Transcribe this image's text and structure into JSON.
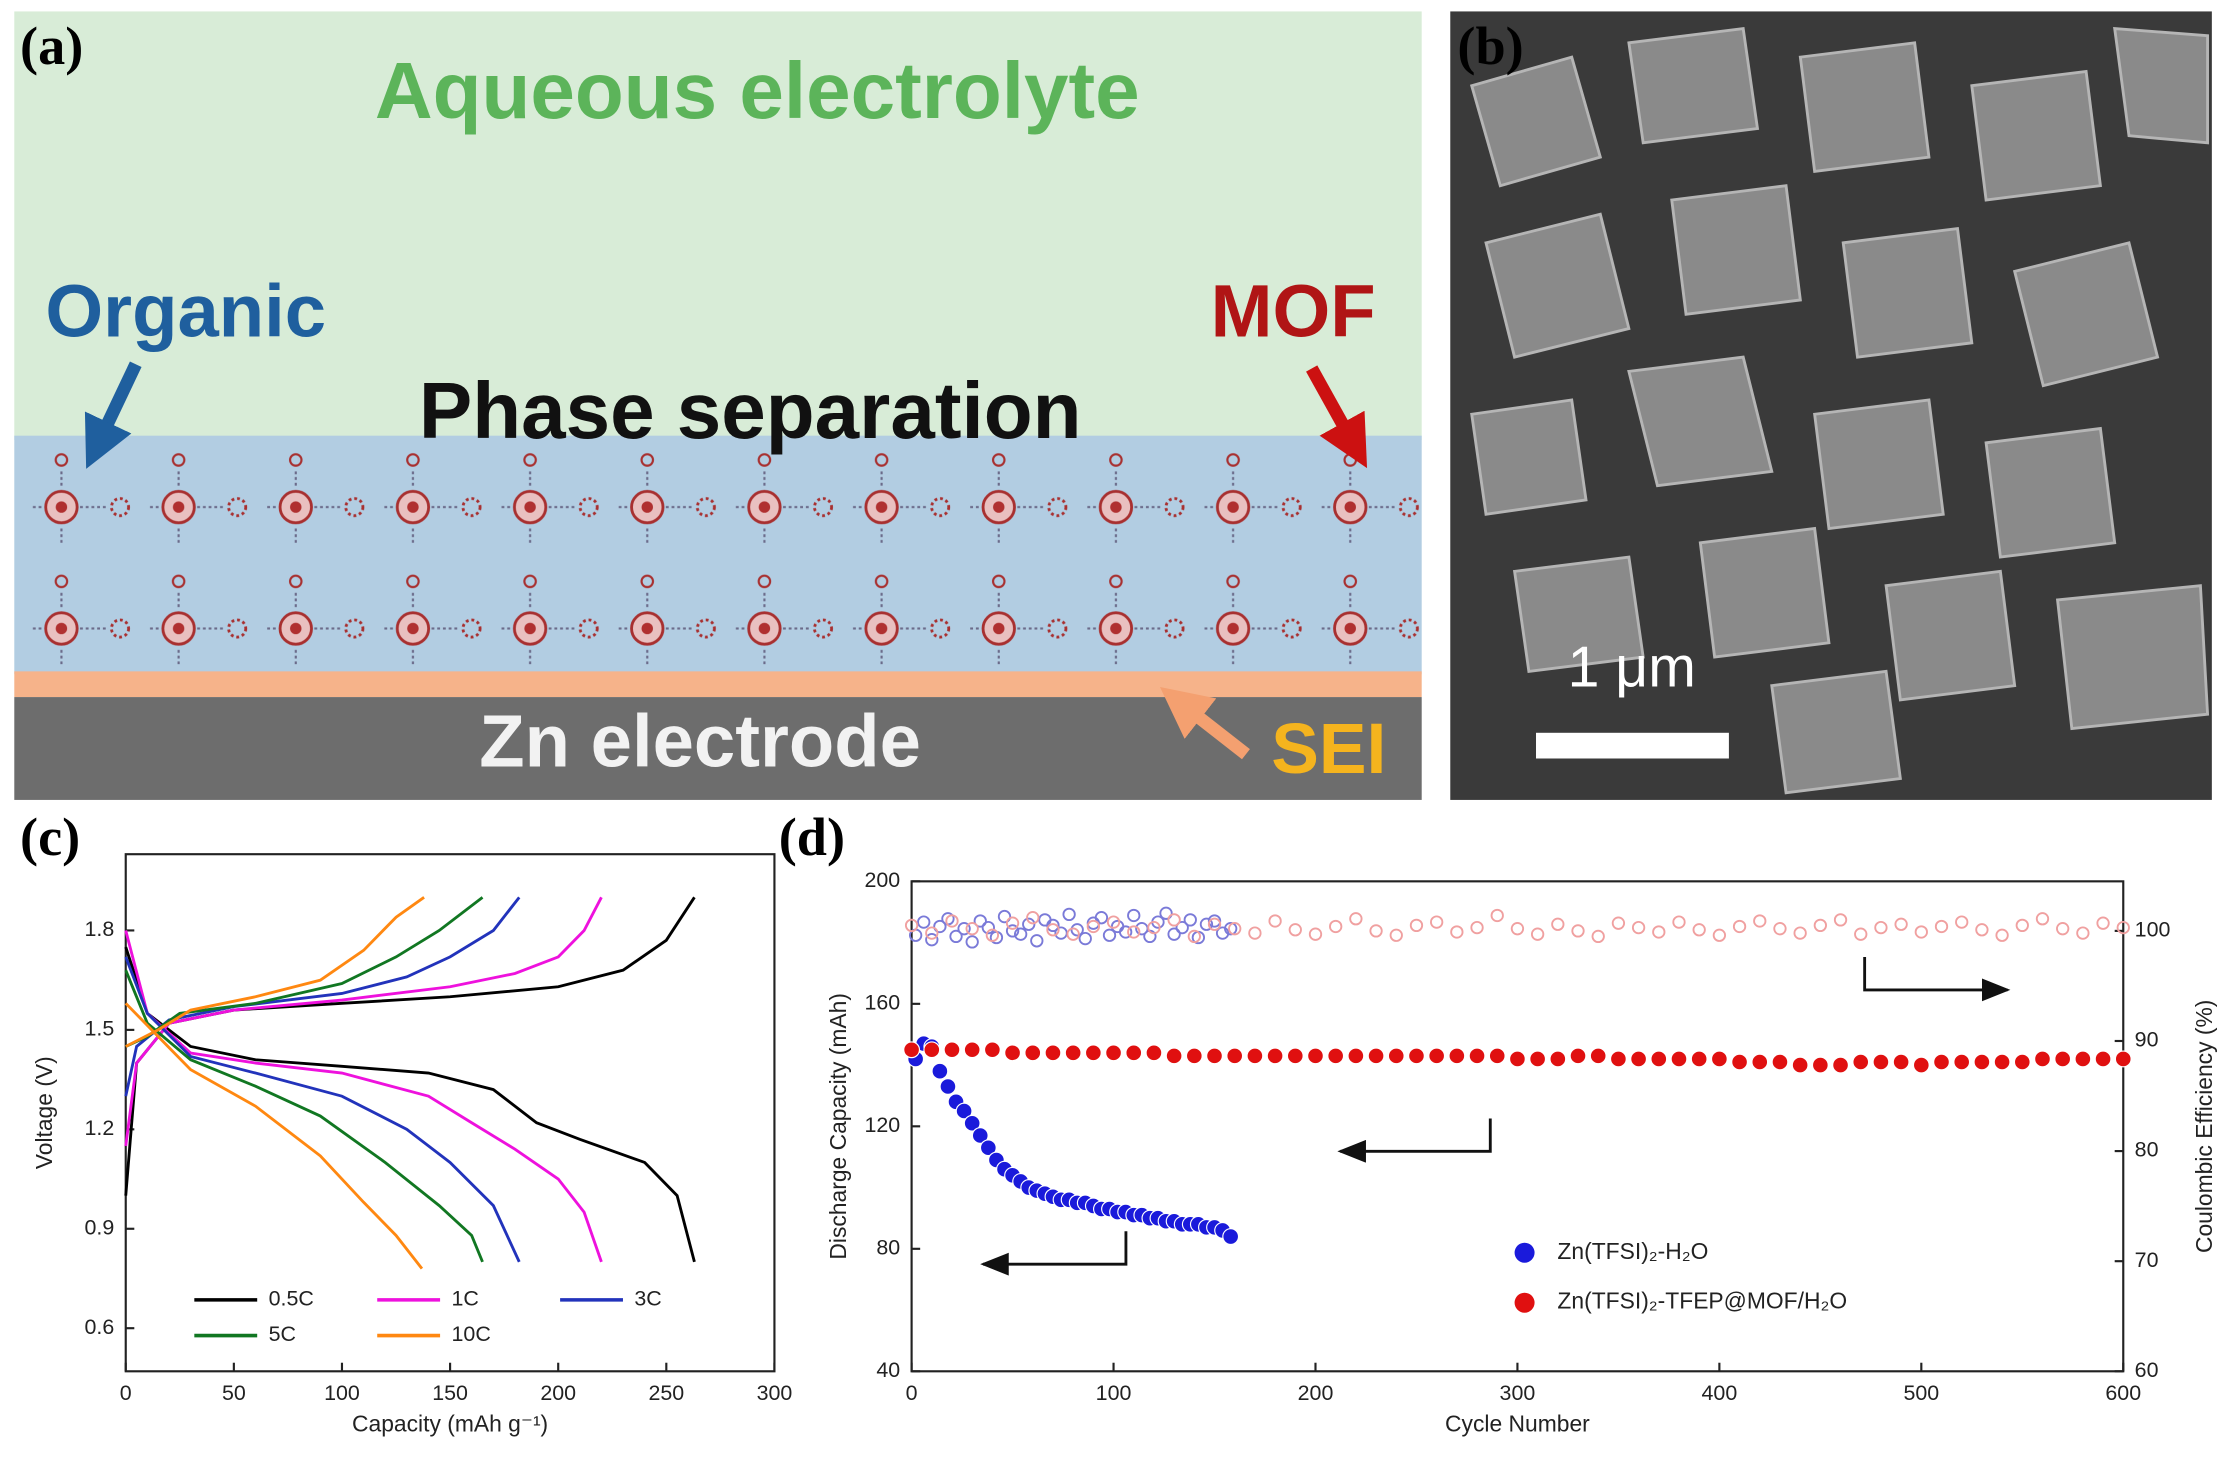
{
  "panel_labels": [
    "(a)",
    "(b)",
    "(c)",
    "(d)"
  ],
  "diagram": {
    "electrolyte": "Aqueous electrolyte",
    "organic": "Organic",
    "mof": "MOF",
    "phase": "Phase separation",
    "electrode": "Zn electrode",
    "sei": "SEI"
  },
  "micrograph": {
    "scale_bar": "1 μm"
  },
  "chart_data": [
    {
      "type": "line",
      "xlabel": "Capacity (mAh g⁻¹)",
      "ylabel": "Voltage (V)",
      "xlim": [
        0,
        300
      ],
      "ylim": [
        0.47,
        2.03
      ],
      "xticks": [
        0,
        50,
        100,
        150,
        200,
        250,
        300
      ],
      "yticks": [
        0.6,
        0.9,
        1.2,
        1.5,
        1.8
      ],
      "series": [
        {
          "name": "0.5C",
          "color": "#000000",
          "discharge": {
            "x": [
              0,
              10,
              30,
              60,
              100,
              140,
              170,
              190,
              210,
              240,
              255,
              263
            ],
            "values": [
              1.75,
              1.55,
              1.45,
              1.41,
              1.39,
              1.37,
              1.32,
              1.22,
              1.17,
              1.1,
              1.0,
              0.8
            ]
          },
          "charge": {
            "x": [
              0,
              5,
              20,
              50,
              100,
              150,
              200,
              230,
              250,
              263
            ],
            "values": [
              1.0,
              1.4,
              1.52,
              1.56,
              1.58,
              1.6,
              1.63,
              1.68,
              1.77,
              1.9
            ]
          }
        },
        {
          "name": "1C",
          "color": "#ee11dd",
          "discharge": {
            "x": [
              0,
              10,
              30,
              60,
              100,
              140,
              160,
              180,
              200,
              212,
              220
            ],
            "values": [
              1.8,
              1.55,
              1.43,
              1.4,
              1.37,
              1.3,
              1.22,
              1.14,
              1.05,
              0.95,
              0.8
            ]
          },
          "charge": {
            "x": [
              0,
              5,
              20,
              50,
              100,
              150,
              180,
              200,
              212,
              220
            ],
            "values": [
              1.15,
              1.4,
              1.52,
              1.56,
              1.59,
              1.63,
              1.67,
              1.72,
              1.8,
              1.9
            ]
          }
        },
        {
          "name": "3C",
          "color": "#2233bb",
          "discharge": {
            "x": [
              0,
              10,
              30,
              60,
              100,
              130,
              150,
              170,
              182
            ],
            "values": [
              1.72,
              1.55,
              1.42,
              1.37,
              1.3,
              1.2,
              1.1,
              0.97,
              0.8
            ]
          },
          "charge": {
            "x": [
              0,
              5,
              20,
              50,
              100,
              130,
              150,
              170,
              182
            ],
            "values": [
              1.3,
              1.45,
              1.53,
              1.57,
              1.61,
              1.66,
              1.72,
              1.8,
              1.9
            ]
          }
        },
        {
          "name": "5C",
          "color": "#117722",
          "discharge": {
            "x": [
              0,
              10,
              30,
              60,
              90,
              120,
              145,
              160,
              165
            ],
            "values": [
              1.68,
              1.52,
              1.41,
              1.33,
              1.24,
              1.1,
              0.97,
              0.88,
              0.8
            ]
          },
          "charge": {
            "x": [
              0,
              10,
              25,
              60,
              100,
              125,
              145,
              165
            ],
            "values": [
              1.45,
              1.48,
              1.55,
              1.58,
              1.64,
              1.72,
              1.8,
              1.9
            ]
          }
        },
        {
          "name": "10C",
          "color": "#ff8811",
          "discharge": {
            "x": [
              0,
              15,
              30,
              60,
              90,
              110,
              125,
              137
            ],
            "values": [
              1.58,
              1.48,
              1.38,
              1.27,
              1.12,
              0.98,
              0.88,
              0.78
            ]
          },
          "charge": {
            "x": [
              0,
              15,
              30,
              60,
              90,
              110,
              125,
              138
            ],
            "values": [
              1.45,
              1.5,
              1.56,
              1.6,
              1.65,
              1.74,
              1.84,
              1.9
            ]
          }
        }
      ]
    },
    {
      "type": "scatter",
      "xlabel": "Cycle Number",
      "ylabel": "Discharge Capacity (mAh)",
      "y2label": "Coulombic Efficiency (%)",
      "xlim": [
        0,
        600
      ],
      "ylim": [
        40,
        200
      ],
      "y2lim": [
        60,
        104.5
      ],
      "xticks": [
        0,
        100,
        200,
        300,
        400,
        500,
        600
      ],
      "yticks": [
        40,
        80,
        120,
        160,
        200
      ],
      "y2ticks": [
        60,
        70,
        80,
        90,
        100
      ],
      "series": [
        {
          "name": "Zn(TFSI)₂-H₂O",
          "color": "#1a1adb",
          "fill": true,
          "x": [
            2,
            6,
            10,
            14,
            18,
            22,
            26,
            30,
            34,
            38,
            42,
            46,
            50,
            54,
            58,
            62,
            66,
            70,
            74,
            78,
            82,
            86,
            90,
            94,
            98,
            102,
            106,
            110,
            114,
            118,
            122,
            126,
            130,
            134,
            138,
            142,
            146,
            150,
            154,
            158
          ],
          "values": [
            142,
            147,
            146,
            138,
            133,
            128,
            125,
            121,
            117,
            113,
            109,
            106,
            104,
            102,
            100,
            99,
            98,
            97,
            96,
            96,
            95,
            95,
            94,
            93,
            93,
            92,
            92,
            91,
            91,
            90,
            90,
            89,
            89,
            88,
            88,
            88,
            87,
            87,
            86,
            84
          ]
        },
        {
          "name": "Zn(TFSI)₂-TFEP@MOF/H₂O",
          "color": "#e01010",
          "fill": true,
          "x": [
            0,
            10,
            20,
            30,
            40,
            50,
            60,
            70,
            80,
            90,
            100,
            110,
            120,
            130,
            140,
            150,
            160,
            170,
            180,
            190,
            200,
            210,
            220,
            230,
            240,
            250,
            260,
            270,
            280,
            290,
            300,
            310,
            320,
            330,
            340,
            350,
            360,
            370,
            380,
            390,
            400,
            410,
            420,
            430,
            440,
            450,
            460,
            470,
            480,
            490,
            500,
            510,
            520,
            530,
            540,
            550,
            560,
            570,
            580,
            590,
            600
          ],
          "values": [
            145,
            145,
            145,
            145,
            145,
            144,
            144,
            144,
            144,
            144,
            144,
            144,
            144,
            143,
            143,
            143,
            143,
            143,
            143,
            143,
            143,
            143,
            143,
            143,
            143,
            143,
            143,
            143,
            143,
            143,
            142,
            142,
            142,
            143,
            143,
            142,
            142,
            142,
            142,
            142,
            142,
            141,
            141,
            141,
            140,
            140,
            140,
            141,
            141,
            141,
            140,
            141,
            141,
            141,
            141,
            141,
            142,
            142,
            142,
            142,
            142
          ]
        },
        {
          "color": "#7a7ad8",
          "fill": false,
          "axis": "y2",
          "x": [
            2,
            6,
            10,
            14,
            18,
            22,
            26,
            30,
            34,
            38,
            42,
            46,
            50,
            54,
            58,
            62,
            66,
            70,
            74,
            78,
            82,
            86,
            90,
            94,
            98,
            102,
            106,
            110,
            114,
            118,
            122,
            126,
            130,
            134,
            138,
            142,
            146,
            150,
            154,
            158
          ],
          "values": [
            99.6,
            100.8,
            99.2,
            100.4,
            101.1,
            99.5,
            100.2,
            99.0,
            100.9,
            100.3,
            99.4,
            101.3,
            100.0,
            99.7,
            100.6,
            99.1,
            101.0,
            100.5,
            99.8,
            101.5,
            100.1,
            99.3,
            100.7,
            101.2,
            99.6,
            100.4,
            99.9,
            101.4,
            100.2,
            99.5,
            100.8,
            101.6,
            99.7,
            100.3,
            101.0,
            99.4,
            100.6,
            100.9,
            99.8,
            100.2
          ]
        },
        {
          "color": "#f0a0a0",
          "fill": false,
          "axis": "y2",
          "x": [
            0,
            10,
            20,
            30,
            40,
            50,
            60,
            70,
            80,
            90,
            100,
            110,
            120,
            130,
            140,
            150,
            160,
            170,
            180,
            190,
            200,
            210,
            220,
            230,
            240,
            250,
            260,
            270,
            280,
            290,
            300,
            310,
            320,
            330,
            340,
            350,
            360,
            370,
            380,
            390,
            400,
            410,
            420,
            430,
            440,
            450,
            460,
            470,
            480,
            490,
            500,
            510,
            520,
            530,
            540,
            550,
            560,
            570,
            580,
            590,
            600
          ],
          "values": [
            100.5,
            99.8,
            100.9,
            100.2,
            99.6,
            100.7,
            101.2,
            100.1,
            99.7,
            100.4,
            100.8,
            99.9,
            100.3,
            101.0,
            99.5,
            100.6,
            100.2,
            99.8,
            100.9,
            100.1,
            99.7,
            100.4,
            101.1,
            100.0,
            99.6,
            100.5,
            100.8,
            99.9,
            100.3,
            101.4,
            100.2,
            99.7,
            100.6,
            100.0,
            99.5,
            100.7,
            100.3,
            99.9,
            100.8,
            100.1,
            99.6,
            100.4,
            100.9,
            100.2,
            99.8,
            100.5,
            101.0,
            99.7,
            100.3,
            100.6,
            99.9,
            100.4,
            100.8,
            100.1,
            99.6,
            100.5,
            101.1,
            100.2,
            99.8,
            100.7,
            100.3
          ]
        }
      ]
    }
  ]
}
